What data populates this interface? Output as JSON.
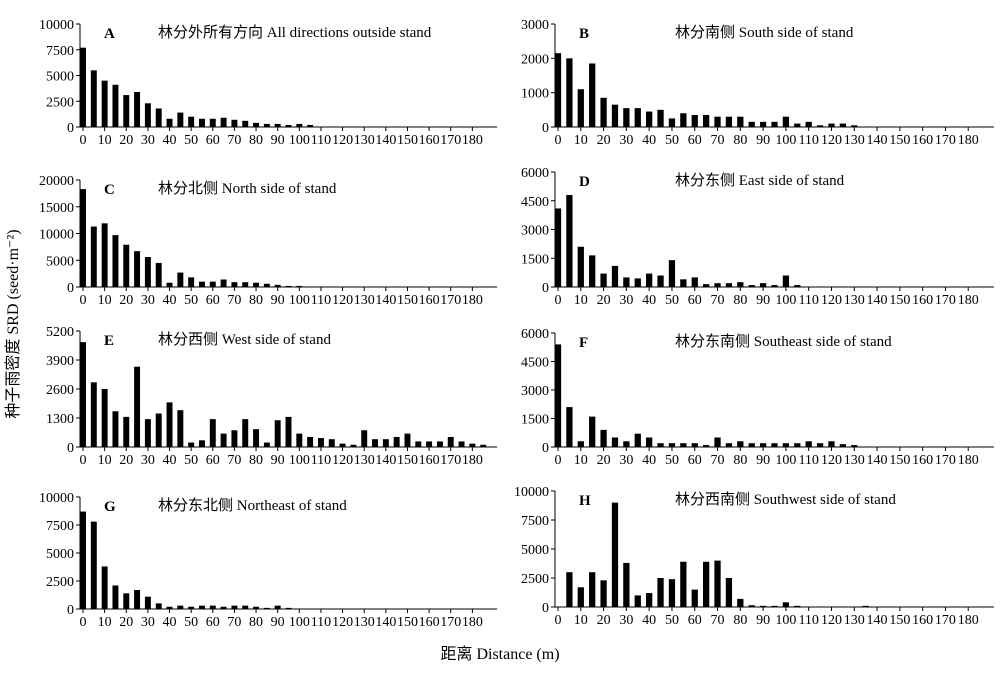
{
  "figure": {
    "ylabel": "种子雨密度 SRD (seed·m⁻²)",
    "xlabel": "距离 Distance (m)"
  },
  "chart_data": [
    {
      "type": "bar",
      "letter": "A",
      "title": "林分外所有方向 All directions outside stand",
      "ylim": [
        0,
        10000
      ],
      "yticks": [
        0,
        2500,
        5000,
        7500,
        10000
      ],
      "xticks": [
        0,
        10,
        20,
        30,
        40,
        50,
        60,
        70,
        80,
        90,
        100,
        110,
        120,
        130,
        140,
        150,
        160,
        170,
        180
      ],
      "x": [
        0,
        5,
        10,
        15,
        20,
        25,
        30,
        35,
        40,
        45,
        50,
        55,
        60,
        65,
        70,
        75,
        80,
        85,
        90,
        95,
        100,
        105
      ],
      "values": [
        7700,
        5500,
        4500,
        4100,
        3100,
        3400,
        2300,
        1800,
        800,
        1400,
        1000,
        800,
        800,
        900,
        700,
        600,
        400,
        300,
        300,
        200,
        300,
        200
      ]
    },
    {
      "type": "bar",
      "letter": "B",
      "title": "林分南侧 South side of stand",
      "ylim": [
        0,
        3000
      ],
      "yticks": [
        0,
        1000,
        2000,
        3000
      ],
      "xticks": [
        0,
        10,
        20,
        30,
        40,
        50,
        60,
        70,
        80,
        90,
        100,
        110,
        120,
        130,
        140,
        150,
        160,
        170,
        180
      ],
      "x": [
        0,
        5,
        10,
        15,
        20,
        25,
        30,
        35,
        40,
        45,
        50,
        55,
        60,
        65,
        70,
        75,
        80,
        85,
        90,
        95,
        100,
        105,
        110,
        115,
        120,
        125,
        130
      ],
      "values": [
        2150,
        2000,
        1100,
        1850,
        850,
        650,
        550,
        550,
        450,
        500,
        250,
        400,
        350,
        350,
        300,
        300,
        300,
        150,
        150,
        150,
        300,
        100,
        150,
        50,
        100,
        100,
        50
      ]
    },
    {
      "type": "bar",
      "letter": "C",
      "title": "林分北侧 North side of stand",
      "ylim": [
        0,
        20000
      ],
      "yticks": [
        0,
        5000,
        10000,
        15000,
        20000
      ],
      "xticks": [
        0,
        10,
        20,
        30,
        40,
        50,
        60,
        70,
        80,
        90,
        100,
        110,
        120,
        130,
        140,
        150,
        160,
        170,
        180
      ],
      "x": [
        0,
        5,
        10,
        15,
        20,
        25,
        30,
        35,
        40,
        45,
        50,
        55,
        60,
        65,
        70,
        75,
        80,
        85,
        90,
        95,
        100,
        105,
        110,
        115
      ],
      "values": [
        18300,
        11300,
        11900,
        9700,
        7900,
        6700,
        5600,
        4500,
        800,
        2700,
        1800,
        1000,
        1000,
        1400,
        900,
        900,
        800,
        600,
        400,
        200,
        200,
        100,
        100,
        100
      ]
    },
    {
      "type": "bar",
      "letter": "D",
      "title": "林分东侧 East side of stand",
      "ylim": [
        0,
        6000
      ],
      "yticks": [
        0,
        1500,
        3000,
        4500,
        6000
      ],
      "xticks": [
        0,
        10,
        20,
        30,
        40,
        50,
        60,
        70,
        80,
        90,
        100,
        110,
        120,
        130,
        140,
        150,
        160,
        170,
        180
      ],
      "x": [
        0,
        5,
        10,
        15,
        20,
        25,
        30,
        35,
        40,
        45,
        50,
        55,
        60,
        65,
        70,
        75,
        80,
        85,
        90,
        95,
        100,
        105
      ],
      "values": [
        4100,
        4800,
        2100,
        1650,
        700,
        1100,
        500,
        450,
        700,
        600,
        1400,
        400,
        500,
        150,
        200,
        200,
        250,
        100,
        200,
        100,
        600,
        100
      ]
    },
    {
      "type": "bar",
      "letter": "E",
      "title": "林分西侧 West side of stand",
      "ylim": [
        0,
        5200
      ],
      "yticks": [
        0,
        1300,
        2600,
        3900,
        5200
      ],
      "xticks": [
        0,
        10,
        20,
        30,
        40,
        50,
        60,
        70,
        80,
        90,
        100,
        110,
        120,
        130,
        140,
        150,
        160,
        170,
        180
      ],
      "x": [
        0,
        5,
        10,
        15,
        20,
        25,
        30,
        35,
        40,
        45,
        50,
        55,
        60,
        65,
        70,
        75,
        80,
        85,
        90,
        95,
        100,
        105,
        110,
        115,
        120,
        125,
        130,
        135,
        140,
        145,
        150,
        155,
        160,
        165,
        170,
        175,
        180,
        185
      ],
      "values": [
        4700,
        2900,
        2600,
        1600,
        1350,
        3600,
        1250,
        1500,
        2000,
        1650,
        200,
        300,
        1250,
        600,
        750,
        1250,
        800,
        200,
        1200,
        1350,
        600,
        450,
        400,
        350,
        150,
        100,
        750,
        350,
        350,
        450,
        600,
        250,
        250,
        250,
        450,
        250,
        150,
        100
      ]
    },
    {
      "type": "bar",
      "letter": "F",
      "title": "林分东南侧 Southeast side of stand",
      "ylim": [
        0,
        6000
      ],
      "yticks": [
        0,
        1500,
        3000,
        4500,
        6000
      ],
      "xticks": [
        0,
        10,
        20,
        30,
        40,
        50,
        60,
        70,
        80,
        90,
        100,
        110,
        120,
        130,
        140,
        150,
        160,
        170,
        180
      ],
      "x": [
        0,
        5,
        10,
        15,
        20,
        25,
        30,
        35,
        40,
        45,
        50,
        55,
        60,
        65,
        70,
        75,
        80,
        85,
        90,
        95,
        100,
        105,
        110,
        115,
        120,
        125,
        130
      ],
      "values": [
        5400,
        2100,
        300,
        1600,
        900,
        500,
        300,
        700,
        500,
        200,
        200,
        200,
        200,
        100,
        500,
        200,
        300,
        200,
        200,
        200,
        200,
        200,
        300,
        200,
        300,
        150,
        100
      ]
    },
    {
      "type": "bar",
      "letter": "G",
      "title": "林分东北侧 Northeast of stand",
      "ylim": [
        0,
        10000
      ],
      "yticks": [
        0,
        2500,
        5000,
        7500,
        10000
      ],
      "xticks": [
        0,
        10,
        20,
        30,
        40,
        50,
        60,
        70,
        80,
        90,
        100,
        110,
        120,
        130,
        140,
        150,
        160,
        170,
        180
      ],
      "x": [
        0,
        5,
        10,
        15,
        20,
        25,
        30,
        35,
        40,
        45,
        50,
        55,
        60,
        65,
        70,
        75,
        80,
        85,
        90,
        95
      ],
      "values": [
        8700,
        7800,
        3800,
        2100,
        1400,
        1700,
        1100,
        500,
        200,
        300,
        200,
        300,
        300,
        200,
        300,
        300,
        200,
        100,
        300,
        100
      ]
    },
    {
      "type": "bar",
      "letter": "H",
      "title": "林分西南侧 Southwest side of stand",
      "ylim": [
        0,
        10000
      ],
      "yticks": [
        0,
        2500,
        5000,
        7500,
        10000
      ],
      "xticks": [
        0,
        10,
        20,
        30,
        40,
        50,
        60,
        70,
        80,
        90,
        100,
        110,
        120,
        130,
        140,
        150,
        160,
        170,
        180
      ],
      "x": [
        5,
        10,
        15,
        20,
        25,
        30,
        35,
        40,
        45,
        50,
        55,
        60,
        65,
        70,
        75,
        80,
        85,
        90,
        95,
        100,
        105,
        135
      ],
      "values": [
        3000,
        1700,
        3000,
        2300,
        9000,
        3800,
        1000,
        1200,
        2500,
        2400,
        3900,
        1500,
        3900,
        4000,
        2500,
        700,
        150,
        100,
        100,
        400,
        100,
        100
      ]
    }
  ]
}
